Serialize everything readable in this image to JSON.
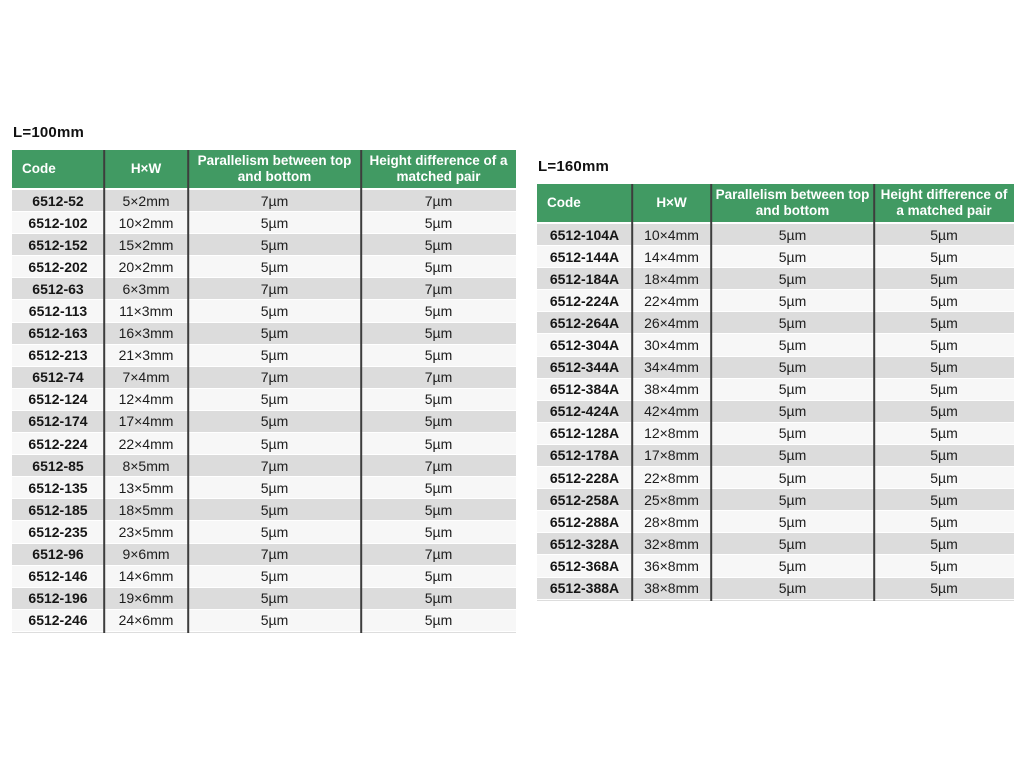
{
  "page": {
    "background": "#ffffff"
  },
  "colors": {
    "header_green": "#419a63",
    "header_text": "#ffffff",
    "row_odd": "#dcdcdc",
    "row_even": "#f7f7f7",
    "divider": "#3d3d3d",
    "body_text": "#1c1c1c"
  },
  "tables": [
    {
      "label": "L=100mm",
      "columns": [
        "Code",
        "H×W",
        "Parallelism between top and bottom",
        "Height difference of a matched pair"
      ],
      "rows": [
        [
          "6512-52",
          "5×2mm",
          "7µm",
          "7µm"
        ],
        [
          "6512-102",
          "10×2mm",
          "5µm",
          "5µm"
        ],
        [
          "6512-152",
          "15×2mm",
          "5µm",
          "5µm"
        ],
        [
          "6512-202",
          "20×2mm",
          "5µm",
          "5µm"
        ],
        [
          "6512-63",
          "6×3mm",
          "7µm",
          "7µm"
        ],
        [
          "6512-113",
          "11×3mm",
          "5µm",
          "5µm"
        ],
        [
          "6512-163",
          "16×3mm",
          "5µm",
          "5µm"
        ],
        [
          "6512-213",
          "21×3mm",
          "5µm",
          "5µm"
        ],
        [
          "6512-74",
          "7×4mm",
          "7µm",
          "7µm"
        ],
        [
          "6512-124",
          "12×4mm",
          "5µm",
          "5µm"
        ],
        [
          "6512-174",
          "17×4mm",
          "5µm",
          "5µm"
        ],
        [
          "6512-224",
          "22×4mm",
          "5µm",
          "5µm"
        ],
        [
          "6512-85",
          "8×5mm",
          "7µm",
          "7µm"
        ],
        [
          "6512-135",
          "13×5mm",
          "5µm",
          "5µm"
        ],
        [
          "6512-185",
          "18×5mm",
          "5µm",
          "5µm"
        ],
        [
          "6512-235",
          "23×5mm",
          "5µm",
          "5µm"
        ],
        [
          "6512-96",
          "9×6mm",
          "7µm",
          "7µm"
        ],
        [
          "6512-146",
          "14×6mm",
          "5µm",
          "5µm"
        ],
        [
          "6512-196",
          "19×6mm",
          "5µm",
          "5µm"
        ],
        [
          "6512-246",
          "24×6mm",
          "5µm",
          "5µm"
        ]
      ]
    },
    {
      "label": "L=160mm",
      "columns": [
        "Code",
        "H×W",
        "Parallelism between top and bottom",
        "Height difference of a matched pair"
      ],
      "rows": [
        [
          "6512-104A",
          "10×4mm",
          "5µm",
          "5µm"
        ],
        [
          "6512-144A",
          "14×4mm",
          "5µm",
          "5µm"
        ],
        [
          "6512-184A",
          "18×4mm",
          "5µm",
          "5µm"
        ],
        [
          "6512-224A",
          "22×4mm",
          "5µm",
          "5µm"
        ],
        [
          "6512-264A",
          "26×4mm",
          "5µm",
          "5µm"
        ],
        [
          "6512-304A",
          "30×4mm",
          "5µm",
          "5µm"
        ],
        [
          "6512-344A",
          "34×4mm",
          "5µm",
          "5µm"
        ],
        [
          "6512-384A",
          "38×4mm",
          "5µm",
          "5µm"
        ],
        [
          "6512-424A",
          "42×4mm",
          "5µm",
          "5µm"
        ],
        [
          "6512-128A",
          "12×8mm",
          "5µm",
          "5µm"
        ],
        [
          "6512-178A",
          "17×8mm",
          "5µm",
          "5µm"
        ],
        [
          "6512-228A",
          "22×8mm",
          "5µm",
          "5µm"
        ],
        [
          "6512-258A",
          "25×8mm",
          "5µm",
          "5µm"
        ],
        [
          "6512-288A",
          "28×8mm",
          "5µm",
          "5µm"
        ],
        [
          "6512-328A",
          "32×8mm",
          "5µm",
          "5µm"
        ],
        [
          "6512-368A",
          "36×8mm",
          "5µm",
          "5µm"
        ],
        [
          "6512-388A",
          "38×8mm",
          "5µm",
          "5µm"
        ]
      ]
    }
  ]
}
